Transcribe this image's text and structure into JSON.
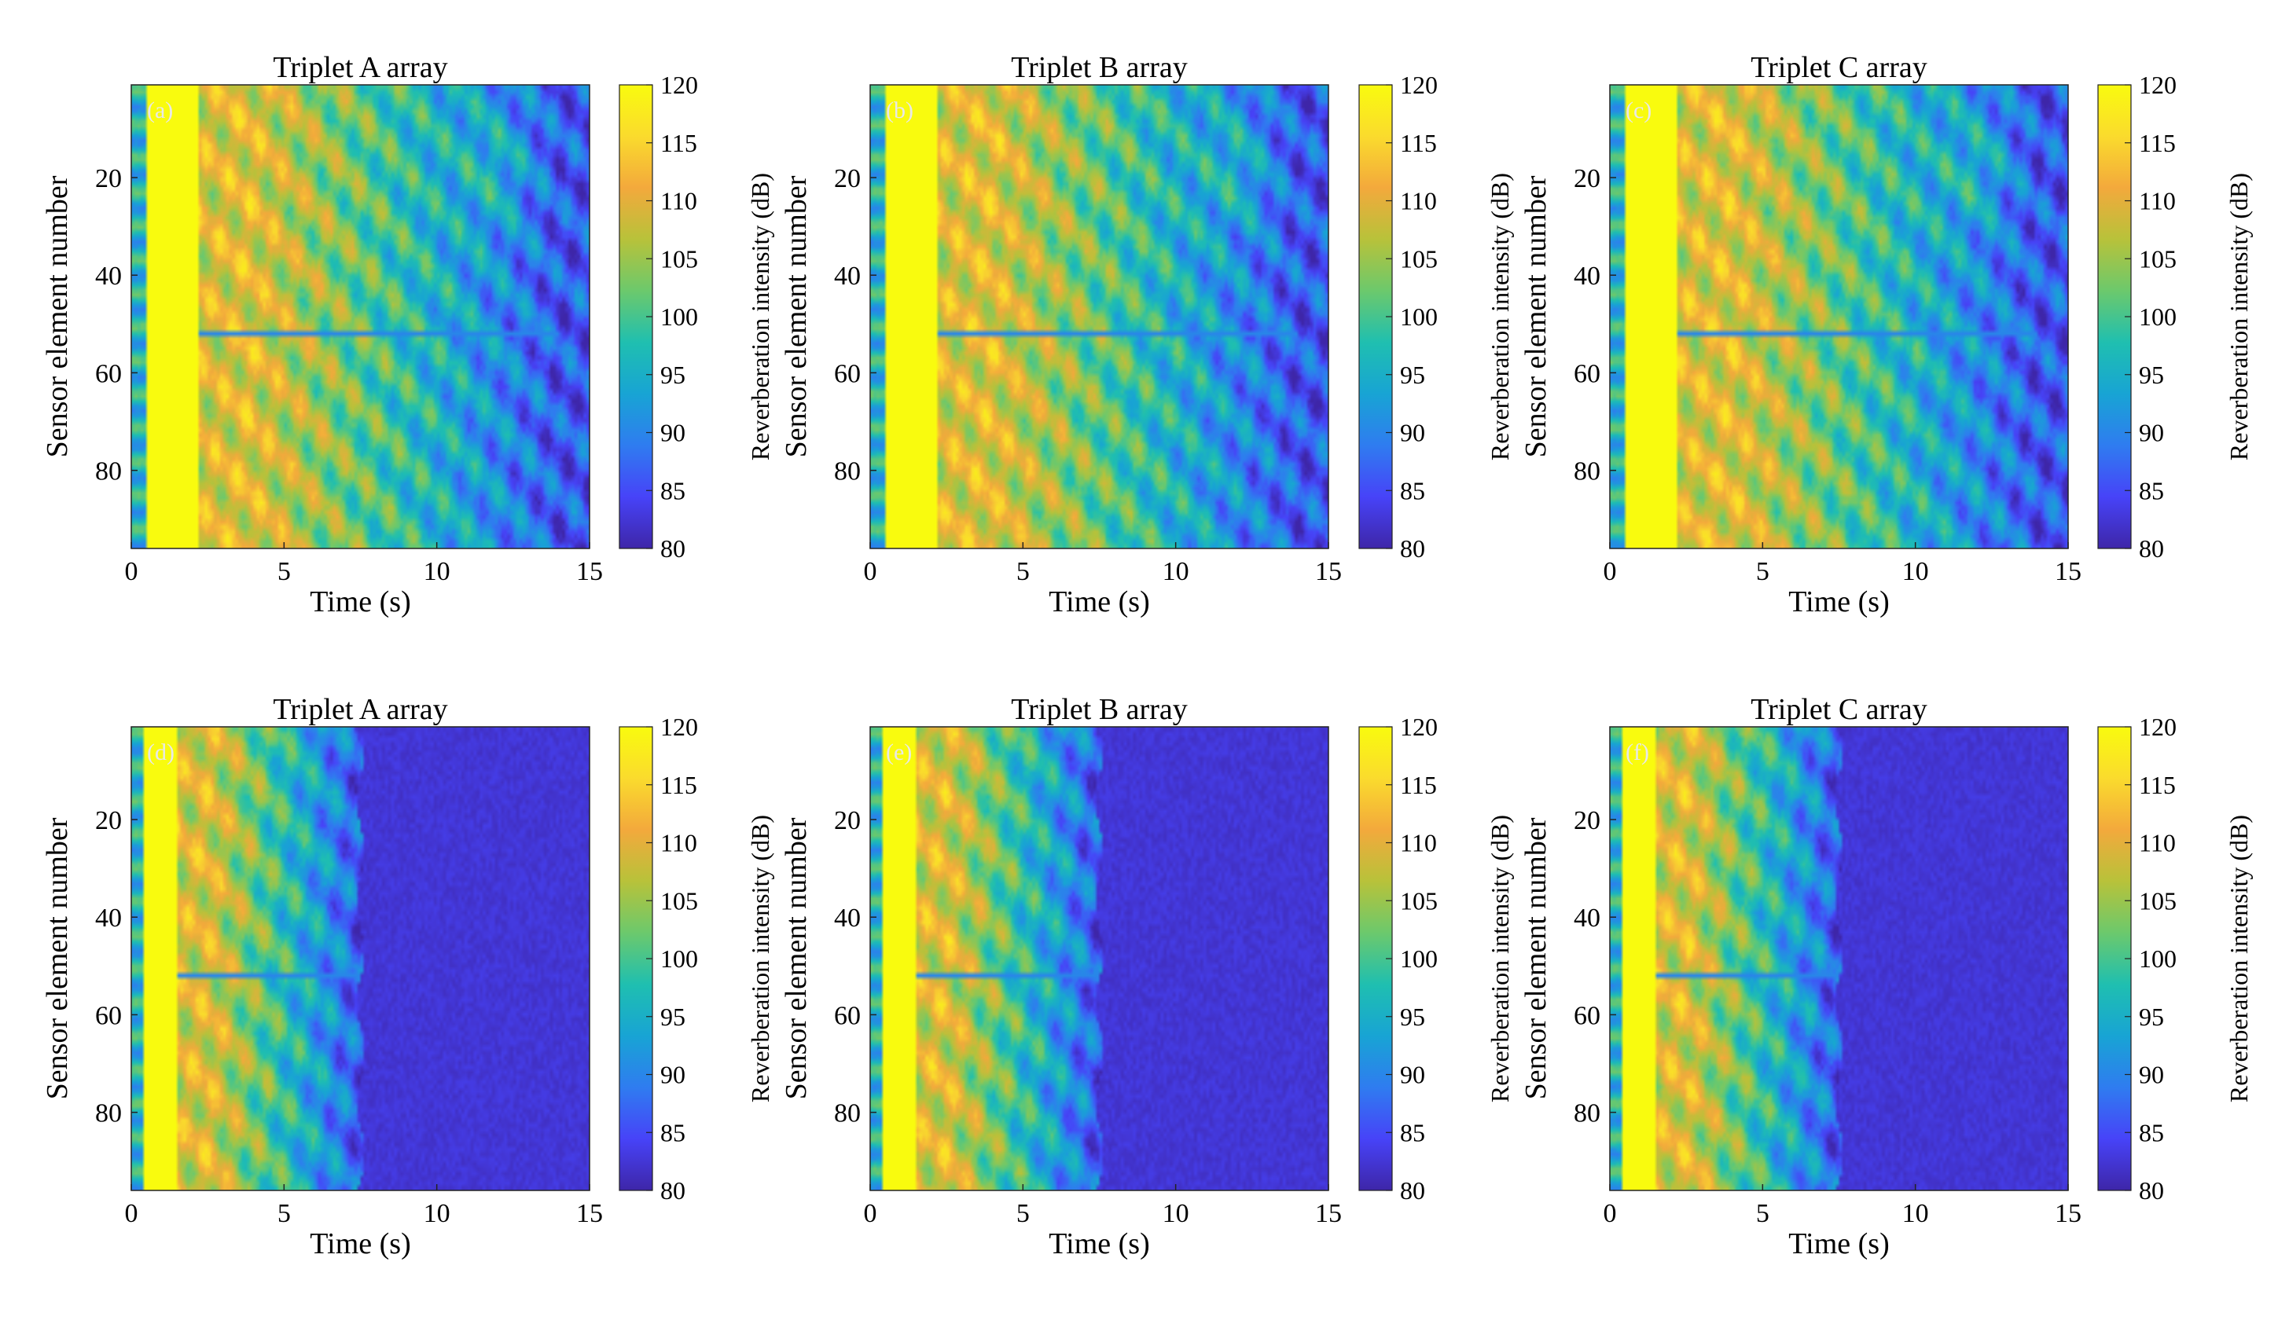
{
  "figure": {
    "description_free": true,
    "colormap": [
      "#3e26a8",
      "#4743f8",
      "#2f7cf0",
      "#18a4d4",
      "#1fbfb0",
      "#6cc96c",
      "#b8c23a",
      "#f3a93c",
      "#fadb2d",
      "#f9fb0e"
    ]
  },
  "chart_data": [
    {
      "id": "a",
      "panel_label": "(a)",
      "type": "heatmap",
      "title": "Triplet A array",
      "xlabel": "Time (s)",
      "ylabel": "Sensor element number",
      "xlim": [
        0,
        15
      ],
      "ylim": [
        1,
        96
      ],
      "xticks": [
        "0",
        "5",
        "10",
        "15"
      ],
      "yticks": [
        "20",
        "40",
        "60",
        "80"
      ],
      "colorbar": {
        "label": "Reverberation intensity (dB)",
        "range": [
          80,
          120
        ],
        "ticks": [
          "80",
          "85",
          "90",
          "95",
          "100",
          "105",
          "110",
          "115",
          "120"
        ]
      },
      "profile": {
        "leading_band_end_s": 0.5,
        "saturated_end_s": 2.2,
        "peak_s": 4.0,
        "decay_end_s": 14.0,
        "cutoff_s": null,
        "stripe_sensor": 52
      }
    },
    {
      "id": "b",
      "panel_label": "(b)",
      "type": "heatmap",
      "title": "Triplet B array",
      "xlabel": "Time (s)",
      "ylabel": "Sensor element number",
      "xlim": [
        0,
        15
      ],
      "ylim": [
        1,
        96
      ],
      "xticks": [
        "0",
        "5",
        "10",
        "15"
      ],
      "yticks": [
        "20",
        "40",
        "60",
        "80"
      ],
      "colorbar": {
        "label": "Reverberation intensity (dB)",
        "range": [
          80,
          120
        ],
        "ticks": [
          "80",
          "85",
          "90",
          "95",
          "100",
          "105",
          "110",
          "115",
          "120"
        ]
      },
      "profile": {
        "leading_band_end_s": 0.5,
        "saturated_end_s": 2.2,
        "peak_s": 4.0,
        "decay_end_s": 14.0,
        "cutoff_s": null,
        "stripe_sensor": 52
      }
    },
    {
      "id": "c",
      "panel_label": "(c)",
      "type": "heatmap",
      "title": "Triplet C array",
      "xlabel": "Time (s)",
      "ylabel": "Sensor element number",
      "xlim": [
        0,
        15
      ],
      "ylim": [
        1,
        96
      ],
      "xticks": [
        "0",
        "5",
        "10",
        "15"
      ],
      "yticks": [
        "20",
        "40",
        "60",
        "80"
      ],
      "colorbar": {
        "label": "Reverberation intensity (dB)",
        "range": [
          80,
          120
        ],
        "ticks": [
          "80",
          "85",
          "90",
          "95",
          "100",
          "105",
          "110",
          "115",
          "120"
        ]
      },
      "profile": {
        "leading_band_end_s": 0.5,
        "saturated_end_s": 2.2,
        "peak_s": 4.0,
        "decay_end_s": 14.0,
        "cutoff_s": null,
        "stripe_sensor": 52
      }
    },
    {
      "id": "d",
      "panel_label": "(d)",
      "type": "heatmap",
      "title": "Triplet A array",
      "xlabel": "Time (s)",
      "ylabel": "Sensor element number",
      "xlim": [
        0,
        15
      ],
      "ylim": [
        1,
        96
      ],
      "xticks": [
        "0",
        "5",
        "10",
        "15"
      ],
      "yticks": [
        "20",
        "40",
        "60",
        "80"
      ],
      "colorbar": {
        "label": "Reverberation intensity (dB)",
        "range": [
          80,
          120
        ],
        "ticks": [
          "80",
          "85",
          "90",
          "95",
          "100",
          "105",
          "110",
          "115",
          "120"
        ]
      },
      "profile": {
        "leading_band_end_s": 0.4,
        "saturated_end_s": 1.5,
        "peak_s": 2.5,
        "decay_end_s": 7.5,
        "cutoff_s": 7.5,
        "stripe_sensor": 52
      }
    },
    {
      "id": "e",
      "panel_label": "(e)",
      "type": "heatmap",
      "title": "Triplet B array",
      "xlabel": "Time (s)",
      "ylabel": "Sensor element number",
      "xlim": [
        0,
        15
      ],
      "ylim": [
        1,
        96
      ],
      "xticks": [
        "0",
        "5",
        "10",
        "15"
      ],
      "yticks": [
        "20",
        "40",
        "60",
        "80"
      ],
      "colorbar": {
        "label": "Reverberation intensity (dB)",
        "range": [
          80,
          120
        ],
        "ticks": [
          "80",
          "85",
          "90",
          "95",
          "100",
          "105",
          "110",
          "115",
          "120"
        ]
      },
      "profile": {
        "leading_band_end_s": 0.4,
        "saturated_end_s": 1.5,
        "peak_s": 2.5,
        "decay_end_s": 7.5,
        "cutoff_s": 7.5,
        "stripe_sensor": 52
      }
    },
    {
      "id": "f",
      "panel_label": "(f)",
      "type": "heatmap",
      "title": "Triplet C array",
      "xlabel": "Time (s)",
      "ylabel": "Sensor element number",
      "xlim": [
        0,
        15
      ],
      "ylim": [
        1,
        96
      ],
      "xticks": [
        "0",
        "5",
        "10",
        "15"
      ],
      "yticks": [
        "20",
        "40",
        "60",
        "80"
      ],
      "colorbar": {
        "label": "Reverberation intensity (dB)",
        "range": [
          80,
          120
        ],
        "ticks": [
          "80",
          "85",
          "90",
          "95",
          "100",
          "105",
          "110",
          "115",
          "120"
        ]
      },
      "profile": {
        "leading_band_end_s": 0.4,
        "saturated_end_s": 1.5,
        "peak_s": 2.5,
        "decay_end_s": 7.5,
        "cutoff_s": 7.5,
        "stripe_sensor": 52
      }
    }
  ]
}
